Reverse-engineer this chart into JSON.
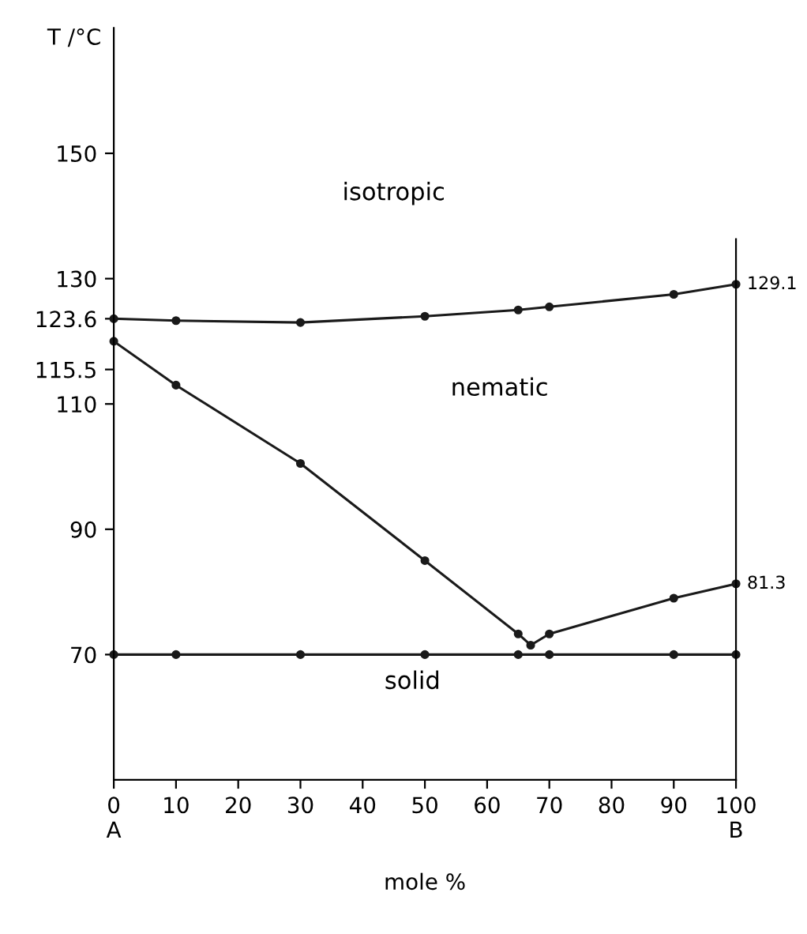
{
  "chart_data": {
    "type": "line",
    "xlabel": "mole %",
    "ylabel": "T /°C",
    "series": [
      {
        "color": "#1a1a1a",
        "x": [
          0,
          10,
          30,
          50,
          65,
          70,
          90,
          100
        ],
        "values": [
          123.6,
          123.3,
          123.0,
          124.0,
          125.0,
          125.5,
          127.5,
          129.1
        ]
      },
      {
        "color": "#1a1a1a",
        "x": [
          0,
          10,
          30,
          50,
          65,
          67,
          70,
          90,
          100
        ],
        "values": [
          120,
          113,
          100.5,
          85,
          73.3,
          71.5,
          73.3,
          79,
          81.3
        ]
      },
      {
        "color": "#1a1a1a",
        "x": [
          0,
          10,
          30,
          50,
          65,
          70,
          90,
          100
        ],
        "values": [
          70,
          70,
          70,
          70,
          70,
          70,
          70,
          70
        ]
      }
    ],
    "annotations": [
      {
        "text": "129.1",
        "x": 100,
        "y": 129.1
      },
      {
        "text": "81.3",
        "x": 100,
        "y": 81.3
      },
      "isotropic",
      "nematic",
      "solid"
    ],
    "xlim": [
      0,
      100
    ],
    "ylim": [
      50,
      170
    ],
    "xticks": [
      {
        "value": 0,
        "label": "0\nA"
      },
      10,
      20,
      30,
      40,
      50,
      60,
      70,
      80,
      90,
      {
        "value": 100,
        "label": "100\nB"
      }
    ],
    "yticks": [
      70,
      90,
      110,
      115.5,
      123.6,
      130,
      150
    ],
    "marker": "circle",
    "line_style": "solid",
    "grid": false,
    "legend": false
  }
}
